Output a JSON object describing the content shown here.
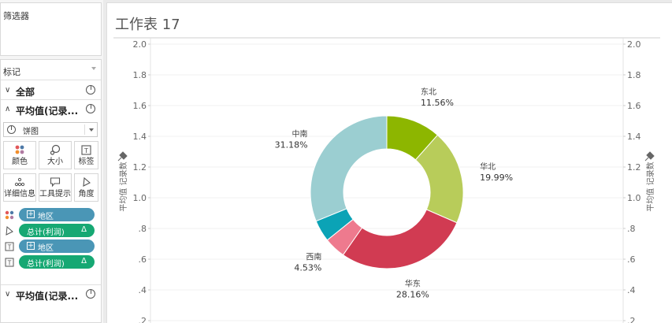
{
  "filters": {
    "title": "筛选器"
  },
  "marks": {
    "title": "标记",
    "all_label": "全部",
    "measure_label": "平均值(记录...",
    "mark_type": "饼图",
    "buttons": [
      {
        "label": "颜色",
        "icon": "color-dots-icon"
      },
      {
        "label": "大小",
        "icon": "size-icon"
      },
      {
        "label": "标签",
        "icon": "label-icon"
      },
      {
        "label": "详细信息",
        "icon": "detail-icon"
      },
      {
        "label": "工具提示",
        "icon": "tooltip-icon"
      },
      {
        "label": "角度",
        "icon": "angle-icon"
      }
    ],
    "pills": [
      {
        "label": "地区",
        "kind": "color",
        "style": "blue",
        "plus": true
      },
      {
        "label": "总计(利润)",
        "kind": "angle",
        "style": "green",
        "delta": "Δ"
      },
      {
        "label": "地区",
        "kind": "label",
        "style": "blue",
        "plus": true
      },
      {
        "label": "总计(利润)",
        "kind": "label",
        "style": "green",
        "delta": "Δ"
      }
    ],
    "bottom_measure_label": "平均值(记录..."
  },
  "sheet": {
    "title": "工作表 17"
  },
  "chart_data": {
    "type": "pie",
    "title": "工作表 17",
    "ylabel_left": "平均值 记录数",
    "ylabel_right": "平均值 记录数",
    "y_ticks": [
      "2.0",
      "1.8",
      "1.6",
      "1.4",
      "1.2",
      "1.0",
      ".8",
      ".6",
      ".4",
      ".2"
    ],
    "ylim": [
      0.2,
      2.0
    ],
    "grid": true,
    "slices": [
      {
        "name": "东北",
        "percent_label": "11.56%",
        "value": 11.56,
        "color": "#8db600"
      },
      {
        "name": "华北",
        "percent_label": "19.99%",
        "value": 19.99,
        "color": "#b8cc5a"
      },
      {
        "name": "华东",
        "percent_label": "28.16%",
        "value": 28.16,
        "color": "#d13b52"
      },
      {
        "name": "西南",
        "percent_label": "4.53%",
        "value": 4.53,
        "color": "#ee7a8e"
      },
      {
        "name": "",
        "percent_label": "",
        "value": 4.6,
        "color": "#0ba3b6"
      },
      {
        "name": "中南",
        "percent_label": "31.18%",
        "value": 31.18,
        "color": "#9bced1"
      }
    ]
  }
}
